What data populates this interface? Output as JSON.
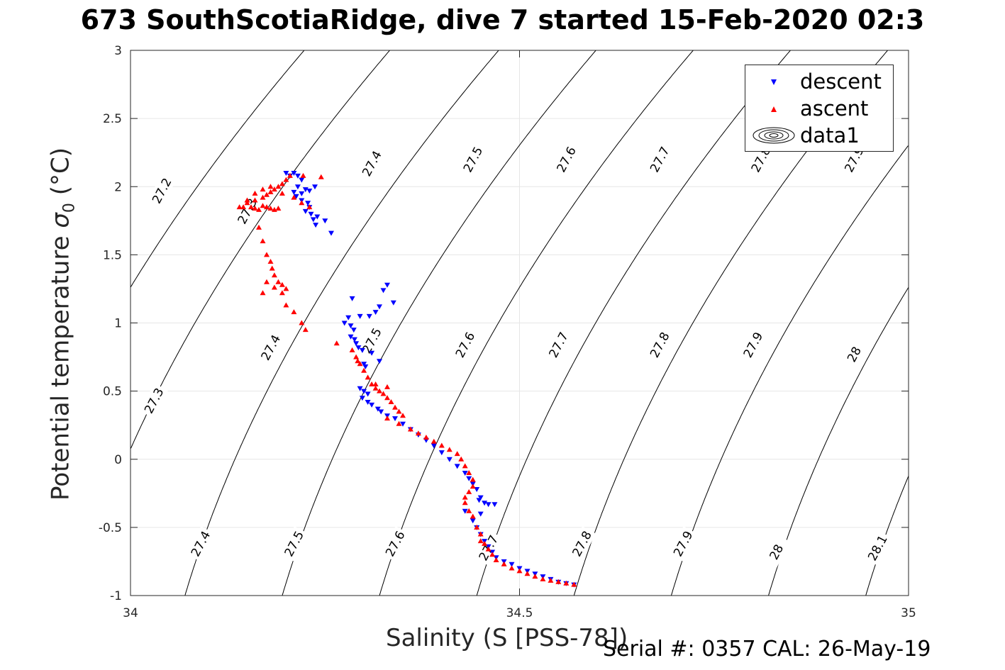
{
  "title": "673 SouthScotiaRidge, dive 7 started 15-Feb-2020 02:3",
  "footer": {
    "serial": "Serial #: 0357  CAL: 26-May-19"
  },
  "chart_data": {
    "type": "scatter",
    "title": "673 SouthScotiaRidge, dive 7 started 15-Feb-2020 02:3",
    "xlabel": "Salinity (S [PSS-78])",
    "ylabel": "Potential temperature σ₀ (°C)",
    "ylabel_main": "Potential temperature ",
    "ylabel_sym": "σ",
    "ylabel_sub": "0",
    "ylabel_unit": " (°C)",
    "xlim": [
      34,
      35
    ],
    "ylim": [
      -1,
      3
    ],
    "xticks": [
      "34",
      "34.5",
      "35"
    ],
    "yticks": [
      "-1",
      "-0.5",
      "0",
      "0.5",
      "1",
      "1.5",
      "2",
      "2.5",
      "3"
    ],
    "grid": true,
    "legend_position": "top-right",
    "legend": [
      "descent",
      "ascent",
      "data1"
    ],
    "contour_levels": [
      "27.2",
      "27.3",
      "27.4",
      "27.5",
      "27.6",
      "27.7",
      "27.8",
      "27.9",
      "28",
      "28.1"
    ],
    "contour_labels": [
      {
        "text": "27.2",
        "x": 34.04,
        "y": 1.97
      },
      {
        "text": "27.3",
        "x": 34.15,
        "y": 1.82
      },
      {
        "text": "27.4",
        "x": 34.31,
        "y": 2.17
      },
      {
        "text": "27.5",
        "x": 34.44,
        "y": 2.2
      },
      {
        "text": "27.6",
        "x": 34.56,
        "y": 2.2
      },
      {
        "text": "27.7",
        "x": 34.68,
        "y": 2.2
      },
      {
        "text": "27.8",
        "x": 34.81,
        "y": 2.2
      },
      {
        "text": "27.9",
        "x": 34.93,
        "y": 2.2
      },
      {
        "text": "27.4",
        "x": 34.18,
        "y": 0.82
      },
      {
        "text": "27.5",
        "x": 34.31,
        "y": 0.87
      },
      {
        "text": "27.6",
        "x": 34.43,
        "y": 0.84
      },
      {
        "text": "27.7",
        "x": 34.55,
        "y": 0.84
      },
      {
        "text": "27.8",
        "x": 34.68,
        "y": 0.84
      },
      {
        "text": "27.9",
        "x": 34.8,
        "y": 0.84
      },
      {
        "text": "28",
        "x": 34.93,
        "y": 0.77
      },
      {
        "text": "27.3",
        "x": 34.03,
        "y": 0.43
      },
      {
        "text": "27.4",
        "x": 34.09,
        "y": -0.62
      },
      {
        "text": "27.5",
        "x": 34.21,
        "y": -0.62
      },
      {
        "text": "27.6",
        "x": 34.34,
        "y": -0.62
      },
      {
        "text": "27.7",
        "x": 34.46,
        "y": -0.65
      },
      {
        "text": "27.8",
        "x": 34.58,
        "y": -0.62
      },
      {
        "text": "27.9",
        "x": 34.71,
        "y": -0.62
      },
      {
        "text": "28",
        "x": 34.83,
        "y": -0.68
      },
      {
        "text": "28.1",
        "x": 34.96,
        "y": -0.65
      }
    ],
    "series": [
      {
        "name": "descent",
        "color": "#0000ff",
        "marker": "triangle-down",
        "x": [
          34.2,
          34.21,
          34.205,
          34.215,
          34.22,
          34.215,
          34.225,
          34.21,
          34.22,
          34.228,
          34.23,
          34.225,
          34.232,
          34.24,
          34.235,
          34.23,
          34.237,
          34.22,
          34.213,
          34.25,
          34.238,
          34.258,
          34.285,
          34.33,
          34.325,
          34.338,
          34.32,
          34.315,
          34.307,
          34.295,
          34.28,
          34.275,
          34.283,
          34.287,
          34.283,
          34.288,
          34.29,
          34.293,
          34.298,
          34.31,
          34.32,
          34.3,
          34.302,
          34.295,
          34.3,
          34.305,
          34.298,
          34.305,
          34.31,
          34.318,
          34.322,
          34.33,
          34.34,
          34.35,
          34.36,
          34.37,
          34.38,
          34.39,
          34.4,
          34.41,
          34.42,
          34.43,
          34.435,
          34.44,
          34.445,
          34.45,
          34.448,
          34.455,
          34.46,
          34.468,
          34.45,
          34.43,
          34.44,
          34.445,
          34.45,
          34.455,
          34.46,
          34.465,
          34.47,
          34.48,
          34.49,
          34.5,
          34.51,
          34.52,
          34.53,
          34.54,
          34.55,
          34.56,
          34.57
        ],
        "y": [
          2.1,
          2.1,
          2.08,
          2.08,
          2.05,
          2.0,
          1.98,
          1.96,
          1.9,
          1.88,
          1.85,
          1.82,
          1.8,
          1.78,
          1.76,
          1.97,
          2.0,
          1.95,
          1.93,
          1.75,
          1.72,
          1.66,
          1.18,
          1.28,
          1.24,
          1.15,
          1.12,
          1.08,
          1.05,
          1.05,
          1.04,
          1.0,
          0.98,
          0.95,
          0.9,
          0.88,
          0.85,
          0.82,
          0.8,
          0.78,
          0.72,
          0.7,
          0.68,
          0.52,
          0.5,
          0.48,
          0.45,
          0.42,
          0.4,
          0.37,
          0.35,
          0.32,
          0.3,
          0.26,
          0.22,
          0.18,
          0.14,
          0.1,
          0.05,
          0.0,
          -0.05,
          -0.1,
          -0.14,
          -0.18,
          -0.22,
          -0.28,
          -0.3,
          -0.32,
          -0.33,
          -0.33,
          -0.4,
          -0.38,
          -0.45,
          -0.5,
          -0.55,
          -0.6,
          -0.64,
          -0.68,
          -0.72,
          -0.75,
          -0.77,
          -0.8,
          -0.82,
          -0.84,
          -0.86,
          -0.88,
          -0.9,
          -0.91,
          -0.92
        ]
      },
      {
        "name": "ascent",
        "color": "#ff0000",
        "marker": "triangle-up",
        "x": [
          34.14,
          34.15,
          34.16,
          34.17,
          34.175,
          34.18,
          34.185,
          34.19,
          34.195,
          34.2,
          34.205,
          34.19,
          34.185,
          34.18,
          34.175,
          34.17,
          34.165,
          34.16,
          34.155,
          34.15,
          34.145,
          34.16,
          34.17,
          34.18,
          34.195,
          34.21,
          34.22,
          34.23,
          34.222,
          34.245,
          34.165,
          34.17,
          34.175,
          34.18,
          34.182,
          34.185,
          34.19,
          34.195,
          34.2,
          34.195,
          34.185,
          34.175,
          34.17,
          34.2,
          34.21,
          34.22,
          34.225,
          34.265,
          34.285,
          34.29,
          34.292,
          34.295,
          34.3,
          34.305,
          34.31,
          34.315,
          34.32,
          34.325,
          34.33,
          34.335,
          34.34,
          34.345,
          34.35,
          34.33,
          34.315,
          34.33,
          34.345,
          34.36,
          34.37,
          34.38,
          34.39,
          34.4,
          34.41,
          34.42,
          34.425,
          34.43,
          34.435,
          34.44,
          34.44,
          34.435,
          34.43,
          34.43,
          34.435,
          34.44,
          34.445,
          34.45,
          34.45,
          34.455,
          34.46,
          34.465,
          34.47,
          34.48,
          34.49,
          34.5,
          34.51,
          34.52,
          34.53,
          34.54,
          34.55,
          34.56,
          34.57
        ],
        "y": [
          1.85,
          1.88,
          1.9,
          1.92,
          1.94,
          1.96,
          1.98,
          2.0,
          2.02,
          2.05,
          2.08,
          1.84,
          1.83,
          1.84,
          1.85,
          1.86,
          1.83,
          1.84,
          1.85,
          1.9,
          1.85,
          1.95,
          1.98,
          2.0,
          1.95,
          1.92,
          1.88,
          1.85,
          2.08,
          2.07,
          1.7,
          1.6,
          1.5,
          1.45,
          1.4,
          1.35,
          1.3,
          1.28,
          1.25,
          1.22,
          1.26,
          1.3,
          1.22,
          1.13,
          1.08,
          1.0,
          0.95,
          0.85,
          0.8,
          0.75,
          0.72,
          0.7,
          0.65,
          0.6,
          0.55,
          0.52,
          0.5,
          0.48,
          0.45,
          0.42,
          0.38,
          0.35,
          0.32,
          0.53,
          0.55,
          0.3,
          0.26,
          0.22,
          0.19,
          0.16,
          0.13,
          0.1,
          0.07,
          0.04,
          0.0,
          -0.05,
          -0.1,
          -0.15,
          -0.2,
          -0.24,
          -0.28,
          -0.32,
          -0.38,
          -0.42,
          -0.5,
          -0.55,
          -0.6,
          -0.62,
          -0.66,
          -0.7,
          -0.74,
          -0.77,
          -0.8,
          -0.82,
          -0.84,
          -0.86,
          -0.88,
          -0.89,
          -0.9,
          -0.91,
          -0.92
        ]
      }
    ]
  }
}
